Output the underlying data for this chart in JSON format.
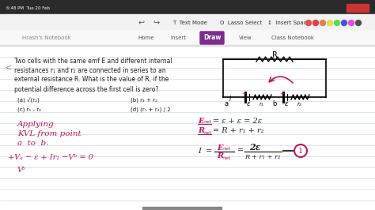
{
  "bg_color": "#f0f0f0",
  "page_bg": "#fafafa",
  "line_color": "#d0d8e8",
  "title_bar_color": "#2c2c2c",
  "toolbar_bg": "#f5f5f5",
  "draw_btn_color": "#7b2d8b",
  "text_color": "#222222",
  "pink_color": "#c0175d",
  "dark_pink": "#a0104a",
  "header_text": "6:48 PM  Tue 20 Feb",
  "app_name": "Hrash's Notebook",
  "nav_items": [
    "Home",
    "Insert",
    "Draw",
    "View",
    "Class Notebook"
  ],
  "problem_text_line1": "Two cells with the same emf E and different internal",
  "problem_text_line2": "resistances r₁ and r₂ are connected in series to an",
  "problem_text_line3": "external resistance R. What is the value of R, if the",
  "problem_text_line4": "potential difference across the first cell is zero?",
  "option_a": "(a) √(r₂)",
  "option_b": "(b) r₁ + r₂",
  "option_c": "(c) r₁ - r₂",
  "option_d": "(d) (r₁ + r₂) / 2",
  "handwritten_line1": "Applying",
  "handwritten_line2": "KVL from point",
  "handwritten_line3": "a  to  b.",
  "eq_number": "1"
}
